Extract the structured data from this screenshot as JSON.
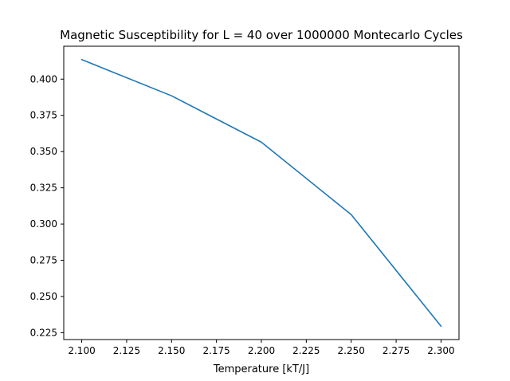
{
  "chart_data": {
    "type": "line",
    "title": "Magnetic Susceptibility for L = 40 over 1000000 Montecarlo Cycles",
    "xlabel": "Temperature [kT/J]",
    "ylabel": "",
    "x": [
      2.1,
      2.15,
      2.2,
      2.25,
      2.3
    ],
    "series": [
      {
        "values": [
          0.4135,
          0.3885,
          0.3565,
          0.3065,
          0.2295
        ],
        "color": "#1f77b4"
      }
    ],
    "xlim": [
      2.09,
      2.31
    ],
    "ylim": [
      0.2203,
      0.4227
    ],
    "xticks": [
      "2.100",
      "2.125",
      "2.150",
      "2.175",
      "2.200",
      "2.225",
      "2.250",
      "2.275",
      "2.300"
    ],
    "yticks": [
      "0.225",
      "0.250",
      "0.275",
      "0.300",
      "0.325",
      "0.350",
      "0.375",
      "0.400"
    ],
    "grid": false,
    "legend": "none"
  }
}
